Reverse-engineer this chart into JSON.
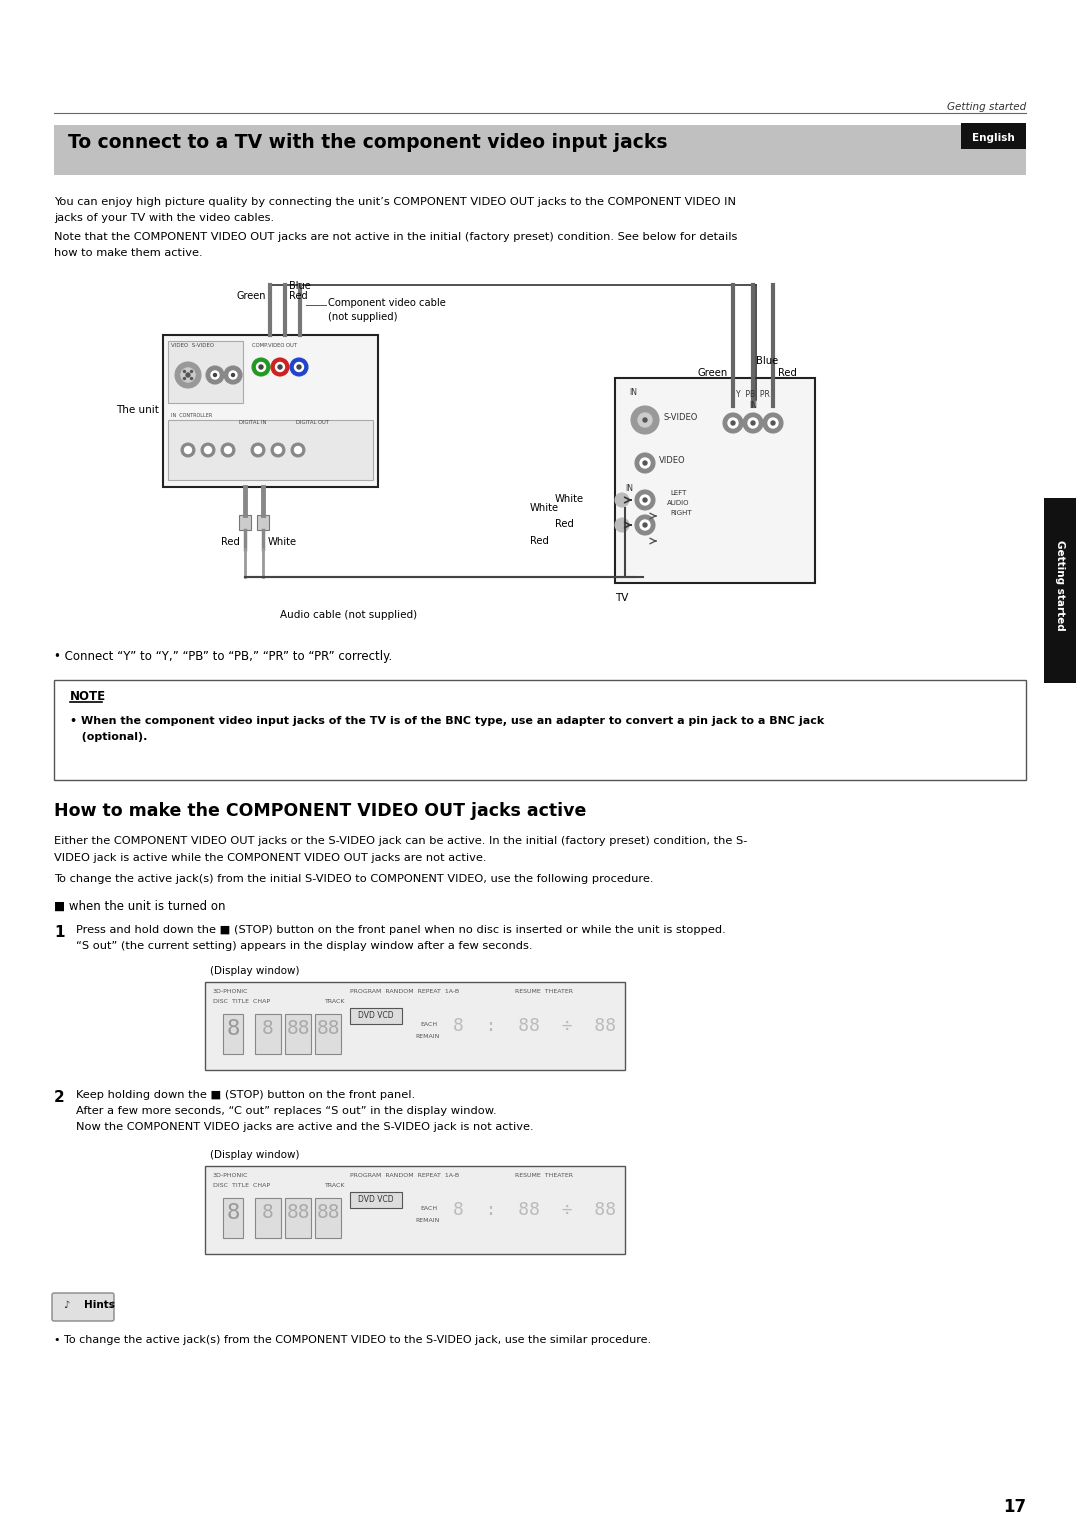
{
  "bg_color": "#ffffff",
  "page_width": 10.8,
  "page_height": 15.28,
  "header_text": "Getting started",
  "title_section": "To connect to a TV with the component video input jacks",
  "english_label": "English",
  "getting_started_sidebar": "Getting started",
  "para1_line1": "You can enjoy high picture quality by connecting the unit’s COMPONENT VIDEO OUT jacks to the COMPONENT VIDEO IN",
  "para1_line2": "jacks of your TV with the video cables.",
  "para1_line3": "Note that the COMPONENT VIDEO OUT jacks are not active in the initial (factory preset) condition. See below for details",
  "para1_line4": "how to make them active.",
  "bullet1": "• Connect “Y” to “Y,” “PB” to “PB,” “PR” to “PR” correctly.",
  "note_title": "NOTE",
  "note_text_line1": "• When the component video input jacks of the TV is of the BNC type, use an adapter to convert a pin jack to a BNC jack",
  "note_text_line2": "   (optional).",
  "section2_title": "How to make the COMPONENT VIDEO OUT jacks active",
  "section2_para1": "Either the COMPONENT VIDEO OUT jacks or the S-VIDEO jack can be active. In the initial (factory preset) condition, the S-",
  "section2_para2": "VIDEO jack is active while the COMPONENT VIDEO OUT jacks are not active.",
  "section2_para3": "To change the active jack(s) from the initial S-VIDEO to COMPONENT VIDEO, use the following procedure.",
  "when_label": "■ when the unit is turned on",
  "step1_num": "1",
  "step1_line1": "Press and hold down the ■ (STOP) button on the front panel when no disc is inserted or while the unit is stopped.",
  "step1_line2": "“S out” (the current setting) appears in the display window after a few seconds.",
  "display_window_label": "(Display window)",
  "step2_num": "2",
  "step2_line1": "Keep holding down the ■ (STOP) button on the front panel.",
  "step2_line2": "After a few more seconds, “C out” replaces “S out” in the display window.",
  "step2_line3": "Now the COMPONENT VIDEO jacks are active and the S-VIDEO jack is not active.",
  "hints_text": "• To change the active jack(s) from the COMPONENT VIDEO to the S-VIDEO jack, use the similar procedure.",
  "page_number": "17"
}
